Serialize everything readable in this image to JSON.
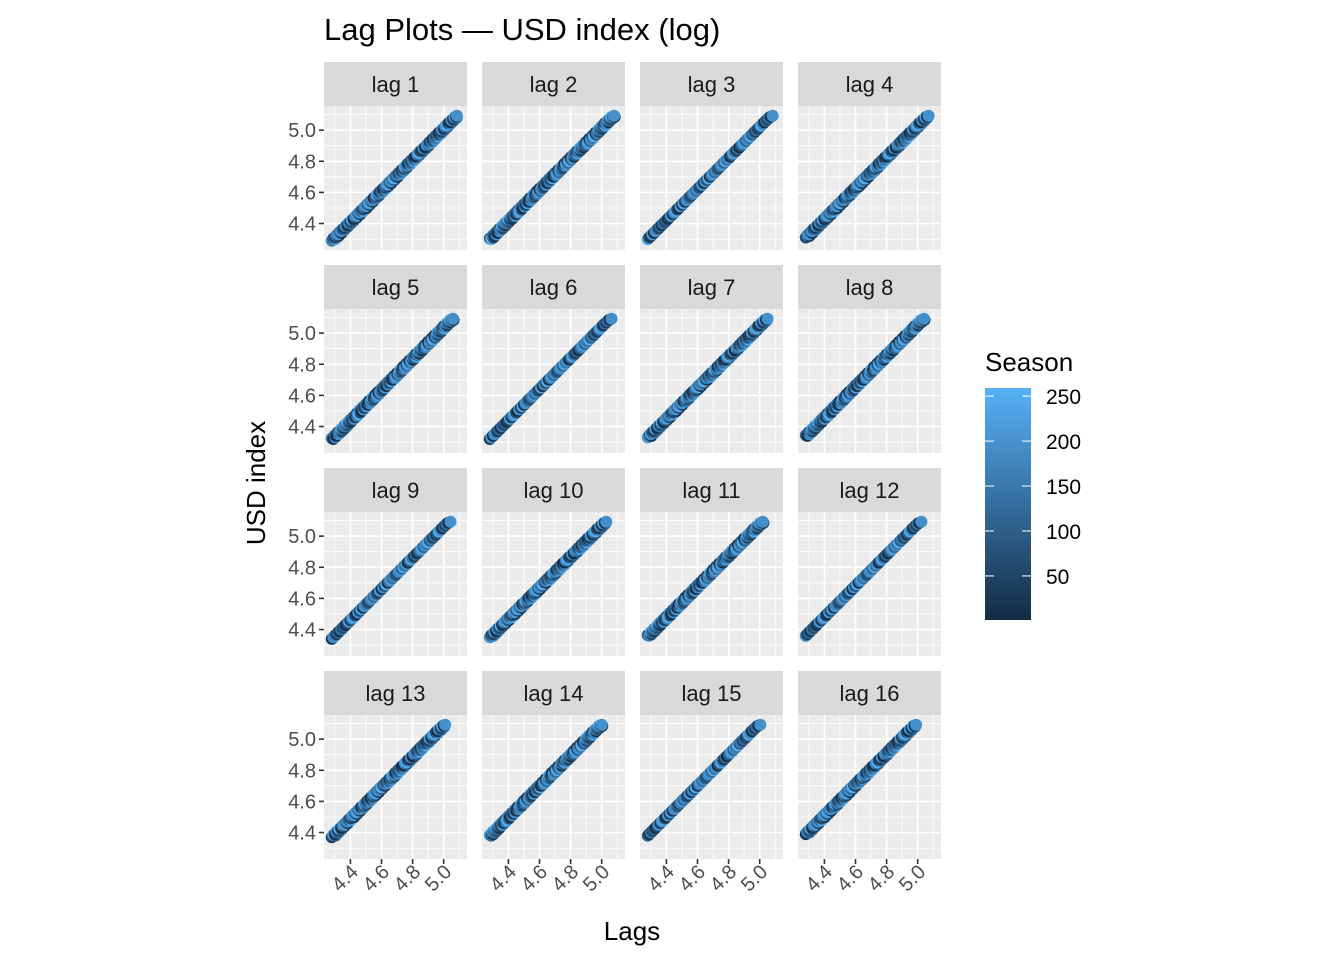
{
  "chart_data": {
    "type": "scatter",
    "title": "Lag Plots — USD index (log)",
    "xlabel": "Lags",
    "ylabel": "USD index",
    "facets": [
      "lag 1",
      "lag 2",
      "lag 3",
      "lag 4",
      "lag 5",
      "lag 6",
      "lag 7",
      "lag 8",
      "lag 9",
      "lag 10",
      "lag 11",
      "lag 12",
      "lag 13",
      "lag 14",
      "lag 15",
      "lag 16"
    ],
    "lags": [
      1,
      2,
      3,
      4,
      5,
      6,
      7,
      8,
      9,
      10,
      11,
      12,
      13,
      14,
      15,
      16
    ],
    "xlim": [
      4.23,
      5.15
    ],
    "ylim": [
      4.23,
      5.155
    ],
    "x_ticks": [
      4.4,
      4.6,
      4.8,
      5.0
    ],
    "x_tick_labels": [
      "4.4",
      "4.6",
      "4.8",
      "5.0"
    ],
    "y_ticks": [
      4.4,
      4.6,
      4.8,
      5.0
    ],
    "y_tick_labels": [
      "4.4",
      "4.6",
      "4.8",
      "5.0"
    ],
    "grid": true,
    "legend": {
      "title": "Season",
      "position": "right",
      "range": [
        1,
        259
      ],
      "ticks": [
        50,
        100,
        150,
        200,
        250
      ],
      "tick_labels": [
        "50",
        "100",
        "150",
        "200",
        "250"
      ],
      "low_color": "#132B43",
      "high_color": "#56B1F7"
    },
    "series_values": [
      4.28,
      4.29,
      4.304,
      4.3,
      4.31,
      4.324,
      4.32,
      4.33,
      4.344,
      4.34,
      4.35,
      4.364,
      4.36,
      4.37,
      4.384,
      4.38,
      4.39,
      4.404,
      4.4,
      4.41,
      4.424,
      4.42,
      4.43,
      4.444,
      4.44,
      4.45,
      4.464,
      4.46,
      4.47,
      4.484,
      4.48,
      4.49,
      4.504,
      4.5,
      4.51,
      4.524,
      4.52,
      4.53,
      4.544,
      4.54,
      4.55,
      4.564,
      4.56,
      4.57,
      4.584,
      4.58,
      4.59,
      4.604,
      4.6,
      4.61,
      4.624,
      4.62,
      4.63,
      4.644,
      4.64,
      4.65,
      4.664,
      4.66,
      4.67,
      4.684,
      4.68,
      4.69,
      4.704,
      4.7,
      4.71,
      4.724,
      4.72,
      4.73,
      4.744,
      4.74,
      4.75,
      4.764,
      4.76,
      4.77,
      4.784,
      4.78,
      4.79,
      4.804,
      4.8,
      4.81,
      4.824,
      4.82,
      4.83,
      4.844,
      4.84,
      4.85,
      4.864,
      4.86,
      4.87,
      4.884,
      4.88,
      4.89,
      4.904,
      4.9,
      4.91,
      4.924,
      4.92,
      4.93,
      4.944,
      4.94,
      4.95,
      4.964,
      4.96,
      4.97,
      4.984,
      4.98,
      4.99,
      5.004,
      5.0,
      5.01,
      5.024,
      5.02,
      5.03,
      5.044,
      5.04,
      5.05,
      5.064,
      5.06,
      5.07,
      5.084,
      5.08,
      5.085,
      5.092
    ],
    "season": [
      12,
      180,
      95,
      240,
      60,
      150,
      30,
      210,
      120,
      5,
      200,
      80,
      170,
      45,
      230,
      110,
      20,
      190,
      140,
      70,
      250,
      100,
      15,
      160,
      55,
      220,
      130,
      35,
      185,
      90,
      245,
      65,
      175,
      10,
      205,
      115,
      50,
      235,
      145,
      25,
      195,
      12,
      180,
      95,
      240,
      60,
      150,
      30,
      210,
      120,
      5,
      200,
      80,
      170,
      45,
      230,
      110,
      20,
      190,
      140,
      70,
      250,
      100,
      15,
      160,
      55,
      220,
      130,
      35,
      185,
      90,
      245,
      65,
      175,
      10,
      205,
      115,
      50,
      235,
      145,
      25,
      195,
      12,
      180,
      95,
      240,
      60,
      150,
      30,
      210,
      120,
      5,
      200,
      80,
      170,
      45,
      230,
      110,
      20,
      190,
      140,
      70,
      250,
      100,
      15,
      160,
      55,
      220,
      130,
      35,
      185,
      90,
      245,
      65,
      175,
      10,
      205,
      115,
      50,
      235,
      145,
      25,
      195
    ]
  }
}
